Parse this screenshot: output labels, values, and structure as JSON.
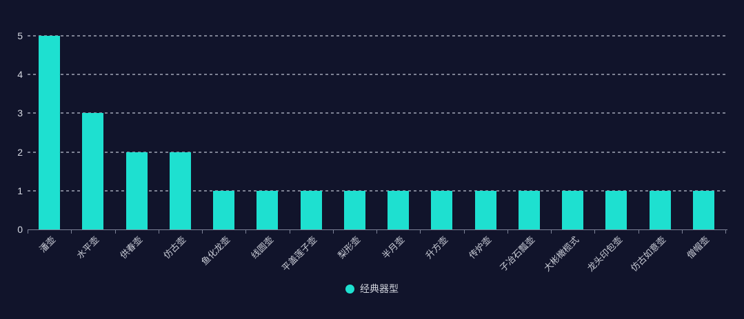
{
  "chart_data": {
    "type": "bar",
    "title": "",
    "series_name": "经典器型",
    "categories": [
      "潘壶",
      "水平壶",
      "供春壶",
      "仿古壶",
      "鱼化龙壶",
      "线圆壶",
      "平盖莲子壶",
      "梨形壶",
      "半月壶",
      "升方壶",
      "传炉壶",
      "子冶石瓢壶",
      "大彬橄榄式",
      "龙头印包壶",
      "仿古如意壶",
      "僧帽壶"
    ],
    "values": [
      5,
      3,
      2,
      2,
      1,
      1,
      1,
      1,
      1,
      1,
      1,
      1,
      1,
      1,
      1,
      1
    ],
    "xlabel": "",
    "ylabel": "",
    "ylim": [
      0,
      5
    ],
    "yticks": [
      0,
      1,
      2,
      3,
      4,
      5
    ],
    "grid": "horizontal-dashed",
    "legend_position": "bottom-center",
    "x_label_rotation": 45
  },
  "colors": {
    "background": "#11142b",
    "bar": "#1ee0d0",
    "axis": "#7e8398",
    "gridline": "#d8ddea",
    "tick_text": "#d6d9e2",
    "category_text": "#c9ccd6",
    "legend_text": "#ced1da"
  }
}
